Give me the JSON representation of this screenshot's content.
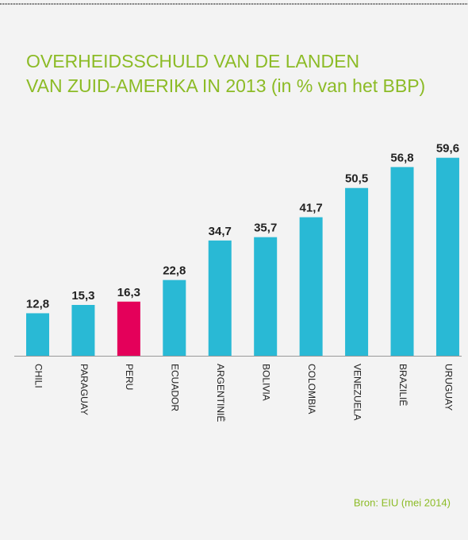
{
  "chart_data": {
    "type": "bar",
    "title": [
      "OVERHEIDSSCHULD VAN DE LANDEN",
      "VAN ZUID-AMERIKA IN 2013 (in % van het BBP)"
    ],
    "categories": [
      "CHILI",
      "PARAGUAY",
      "PERU",
      "ECUADOR",
      "ARGENTINIË",
      "BOLIVIA",
      "COLOMBIA",
      "VENEZUELA",
      "BRAZILIË",
      "URUGUAY"
    ],
    "values": [
      12.8,
      15.3,
      16.3,
      22.8,
      34.7,
      35.7,
      41.7,
      50.5,
      56.8,
      59.6
    ],
    "value_labels": [
      "12,8",
      "15,3",
      "16,3",
      "22,8",
      "34,7",
      "35,7",
      "41,7",
      "50,5",
      "56,8",
      "59,6"
    ],
    "colors": [
      "#29b9d5",
      "#29b9d5",
      "#e4005a",
      "#29b9d5",
      "#29b9d5",
      "#29b9d5",
      "#29b9d5",
      "#29b9d5",
      "#29b9d5",
      "#29b9d5"
    ],
    "ylim": [
      0,
      60
    ],
    "source": "Bron: EIU (mei 2014)"
  }
}
